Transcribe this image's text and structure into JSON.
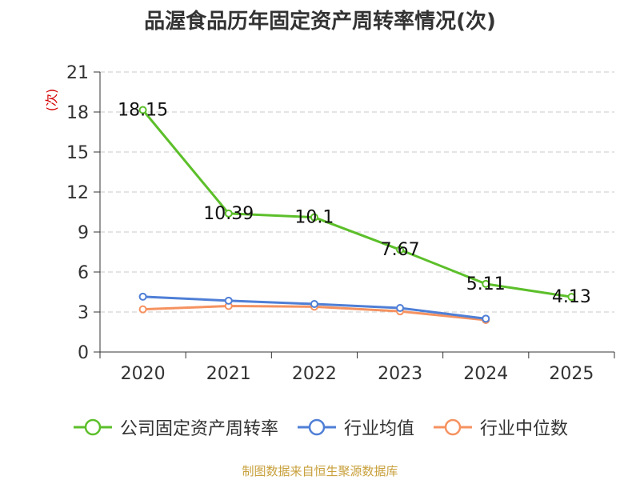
{
  "chart_data": {
    "type": "line",
    "title": "品渥食品历年固定资产周转率情况(次)",
    "ylabel": "(次)",
    "xlabel": "",
    "categories": [
      "2020",
      "2021",
      "2022",
      "2023",
      "2024",
      "2025"
    ],
    "ylim": [
      0,
      21
    ],
    "yticks": [
      0,
      3,
      6,
      9,
      12,
      15,
      18,
      21
    ],
    "grid": true,
    "legend_position": "bottom",
    "series": [
      {
        "name": "公司固定资产周转率",
        "color": "#5cbf2a",
        "values": [
          18.15,
          10.39,
          10.1,
          7.67,
          5.11,
          4.13
        ],
        "labels": [
          "18.15",
          "10.39",
          "10.1",
          "7.67",
          "5.11",
          "4.13"
        ]
      },
      {
        "name": "行业均值",
        "color": "#4f7fd6",
        "values": [
          4.15,
          3.85,
          3.6,
          3.3,
          2.5,
          null
        ]
      },
      {
        "name": "行业中位数",
        "color": "#f59260",
        "values": [
          3.2,
          3.45,
          3.4,
          3.05,
          2.4,
          null
        ]
      }
    ]
  },
  "source": "制图数据来自恒生聚源数据库"
}
